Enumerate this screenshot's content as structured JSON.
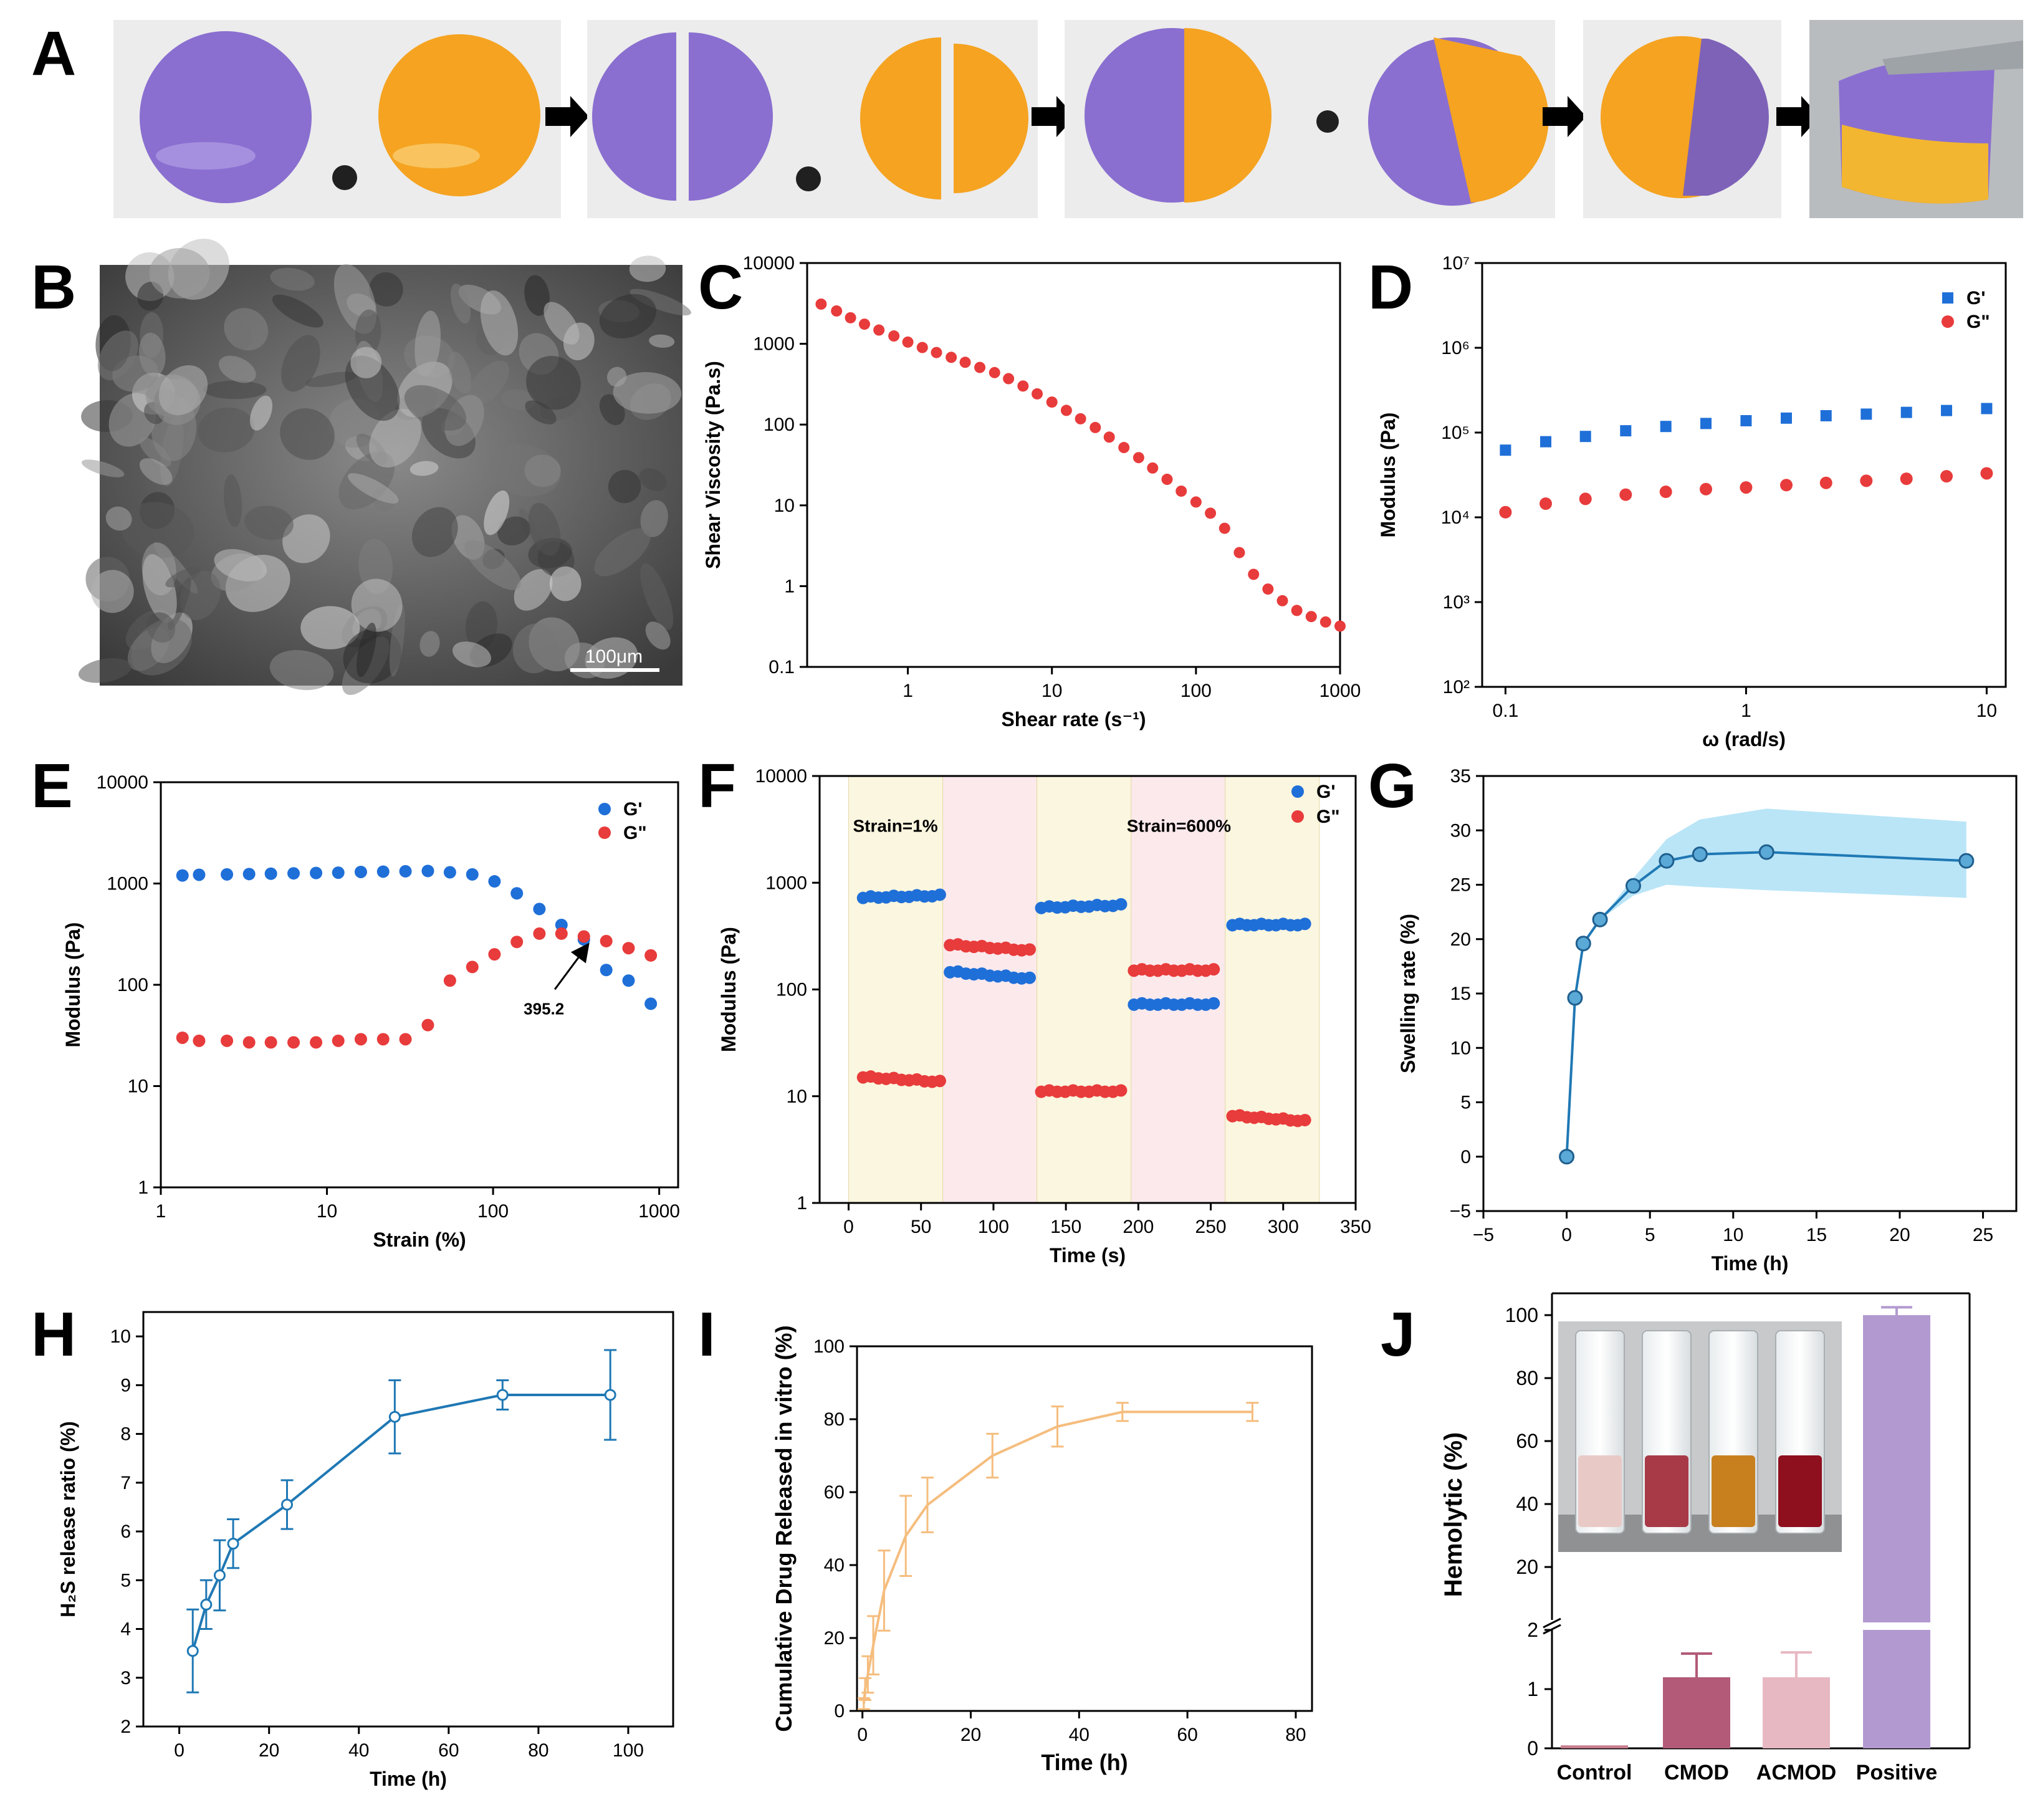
{
  "figure": {
    "panel_letters": [
      "A",
      "B",
      "C",
      "D",
      "E",
      "F",
      "G",
      "H",
      "I",
      "J"
    ],
    "sem_scale_label": "100μm"
  },
  "colors": {
    "blue": "#1f6fd8",
    "red": "#e83b3b",
    "steel": "#1f78b4",
    "band": "#7fd0f0",
    "tan": "#f5bd7e",
    "purple": "#8a6fc6",
    "gel_orange": "#f39c12",
    "bar_control": "#c97c8e",
    "bar_cmod": "#b25a78",
    "bar_acmod": "#e7b8c2",
    "bar_positive": "#b29ad0"
  },
  "chart_data": [
    {
      "panel": "C",
      "type": "scatter",
      "xlabel": "Shear rate (s⁻¹)",
      "ylabel": "Shear Viscosity (Pa.s)",
      "xscale": "log",
      "yscale": "log",
      "xlim": [
        0.2,
        1000
      ],
      "ylim": [
        0.1,
        10000
      ],
      "xticks": [
        1,
        10,
        100,
        1000
      ],
      "xtick_labels": [
        "1",
        "10",
        "100",
        "1000"
      ],
      "yticks": [
        0.1,
        1,
        10,
        100,
        1000,
        10000
      ],
      "ytick_labels": [
        "0.1",
        "1",
        "10",
        "100",
        "1000",
        "10000"
      ],
      "series": [
        {
          "name": "viscosity",
          "color": "#e83b3b",
          "x": [
            0.25,
            0.32,
            0.4,
            0.5,
            0.63,
            0.8,
            1.0,
            1.26,
            1.58,
            2.0,
            2.5,
            3.16,
            4.0,
            5.0,
            6.3,
            7.9,
            10,
            12.6,
            15.8,
            20,
            25,
            31.6,
            40,
            50,
            63,
            79,
            100,
            126,
            158,
            200,
            251,
            316,
            398,
            501,
            631,
            794,
            1000
          ],
          "y": [
            3100,
            2550,
            2100,
            1750,
            1480,
            1250,
            1050,
            900,
            780,
            680,
            590,
            510,
            440,
            370,
            300,
            240,
            190,
            150,
            118,
            92,
            70,
            52,
            39,
            29,
            21,
            15,
            11,
            8,
            5.2,
            2.6,
            1.4,
            0.92,
            0.66,
            0.5,
            0.42,
            0.36,
            0.32
          ]
        }
      ]
    },
    {
      "panel": "D",
      "type": "scatter",
      "xlabel": "ω (rad/s)",
      "ylabel": "Modulus (Pa)",
      "xscale": "log",
      "yscale": "log",
      "xlim": [
        0.08,
        12
      ],
      "ylim": [
        100,
        10000000
      ],
      "xticks": [
        0.1,
        1,
        10
      ],
      "xtick_labels": [
        "0.1",
        "1",
        "10"
      ],
      "yticks": [
        100,
        1000,
        10000,
        100000,
        1000000,
        10000000
      ],
      "ytick_labels": [
        "10²",
        "10³",
        "10⁴",
        "10⁵",
        "10⁶",
        "10⁷"
      ],
      "legend": "top-right",
      "series": [
        {
          "name": "G'",
          "marker": "square",
          "color": "#1f6fd8",
          "x": [
            0.1,
            0.147,
            0.215,
            0.316,
            0.464,
            0.681,
            1,
            1.47,
            2.15,
            3.16,
            4.64,
            6.81,
            10
          ],
          "y": [
            62000,
            78000,
            90000,
            105000,
            118000,
            128000,
            138000,
            148000,
            158000,
            165000,
            173000,
            182000,
            192000
          ]
        },
        {
          "name": "G\"",
          "marker": "circle",
          "color": "#e83b3b",
          "x": [
            0.1,
            0.147,
            0.215,
            0.316,
            0.464,
            0.681,
            1,
            1.47,
            2.15,
            3.16,
            4.64,
            6.81,
            10
          ],
          "y": [
            11500,
            14500,
            16500,
            18500,
            20000,
            21500,
            22500,
            24000,
            25500,
            27000,
            28500,
            30500,
            33000
          ]
        }
      ]
    },
    {
      "panel": "E",
      "type": "scatter",
      "xlabel": "Strain (%)",
      "ylabel": "Modulus (Pa)",
      "xscale": "log",
      "yscale": "log",
      "xlim": [
        1,
        1300
      ],
      "ylim": [
        1,
        10000
      ],
      "xticks": [
        1,
        10,
        100,
        1000
      ],
      "xtick_labels": [
        "1",
        "10",
        "100",
        "1000"
      ],
      "yticks": [
        1,
        10,
        100,
        1000,
        10000
      ],
      "ytick_labels": [
        "1",
        "10",
        "100",
        "1000",
        "10000"
      ],
      "legend": "top-right",
      "annotation": {
        "text": "395.2",
        "x": 395.2,
        "y": 280
      },
      "series": [
        {
          "name": "G'",
          "color": "#1f6fd8",
          "x": [
            1.35,
            1.7,
            2.5,
            3.4,
            4.6,
            6.3,
            8.6,
            11.7,
            16,
            21.8,
            29.7,
            40.5,
            55,
            75,
            102,
            139,
            190,
            258,
            352,
            480,
            654,
            890
          ],
          "y": [
            1200,
            1220,
            1230,
            1240,
            1250,
            1260,
            1270,
            1280,
            1300,
            1310,
            1320,
            1330,
            1290,
            1230,
            1050,
            800,
            560,
            390,
            280,
            140,
            110,
            65
          ]
        },
        {
          "name": "G\"",
          "color": "#e83b3b",
          "x": [
            1.35,
            1.7,
            2.5,
            3.4,
            4.6,
            6.3,
            8.6,
            11.7,
            16,
            21.8,
            29.7,
            40.5,
            55,
            75,
            102,
            139,
            190,
            258,
            352,
            480,
            654,
            890
          ],
          "y": [
            30,
            28,
            28,
            27,
            27,
            27,
            27,
            28,
            29,
            29,
            29,
            40,
            110,
            150,
            200,
            265,
            320,
            320,
            300,
            270,
            230,
            195
          ]
        }
      ]
    },
    {
      "panel": "F",
      "type": "scatter",
      "xlabel": "Time (s)",
      "ylabel": "Modulus (Pa)",
      "xscale": "linear",
      "yscale": "log",
      "xlim": [
        -20,
        350
      ],
      "ylim": [
        1,
        10000
      ],
      "xticks": [
        0,
        50,
        100,
        150,
        200,
        250,
        300,
        350
      ],
      "xtick_labels": [
        "0",
        "50",
        "100",
        "150",
        "200",
        "250",
        "300",
        "350"
      ],
      "yticks": [
        1,
        10,
        100,
        1000,
        10000
      ],
      "ytick_labels": [
        "1",
        "10",
        "100",
        "1000",
        "10000"
      ],
      "legend": "top-right",
      "regions": [
        {
          "x0": 0,
          "x1": 65,
          "fill": "#fbf6df"
        },
        {
          "x0": 65,
          "x1": 130,
          "fill": "#fbe9ec"
        },
        {
          "x0": 130,
          "x1": 195,
          "fill": "#fbf6df"
        },
        {
          "x0": 195,
          "x1": 260,
          "fill": "#fbe9ec"
        },
        {
          "x0": 260,
          "x1": 325,
          "fill": "#fbf6df"
        }
      ],
      "annotations": [
        {
          "text": "Strain=1%",
          "x": 3,
          "y": 3000
        },
        {
          "text": "Strain=600%",
          "x": 192,
          "y": 3000
        }
      ],
      "segments": [
        {
          "series": "G'",
          "x0": 10,
          "x1": 63,
          "y0": 720,
          "y1": 750
        },
        {
          "series": "G'",
          "x0": 70,
          "x1": 125,
          "y0": 145,
          "y1": 125
        },
        {
          "series": "G'",
          "x0": 133,
          "x1": 188,
          "y0": 580,
          "y1": 610
        },
        {
          "series": "G'",
          "x0": 197,
          "x1": 252,
          "y0": 72,
          "y1": 72
        },
        {
          "series": "G'",
          "x0": 265,
          "x1": 315,
          "y0": 400,
          "y1": 400
        },
        {
          "series": "G\"",
          "x0": 10,
          "x1": 63,
          "y0": 15,
          "y1": 13.5
        },
        {
          "series": "G\"",
          "x0": 70,
          "x1": 125,
          "y0": 260,
          "y1": 230
        },
        {
          "series": "G\"",
          "x0": 133,
          "x1": 188,
          "y0": 11,
          "y1": 11
        },
        {
          "series": "G\"",
          "x0": 197,
          "x1": 252,
          "y0": 150,
          "y1": 150
        },
        {
          "series": "G\"",
          "x0": 265,
          "x1": 315,
          "y0": 6.5,
          "y1": 5.8
        }
      ],
      "series": [
        {
          "name": "G'",
          "color": "#1f6fd8"
        },
        {
          "name": "G\"",
          "color": "#e83b3b"
        }
      ]
    },
    {
      "panel": "G",
      "type": "line",
      "xlabel": "Time (h)",
      "ylabel": "Swelling rate (%)",
      "xlim": [
        -5,
        27
      ],
      "ylim": [
        -5,
        35
      ],
      "xticks": [
        -5,
        0,
        5,
        10,
        15,
        20,
        25
      ],
      "xtick_labels": [
        "−5",
        "0",
        "5",
        "10",
        "15",
        "20",
        "25"
      ],
      "yticks": [
        -5,
        0,
        5,
        10,
        15,
        20,
        25,
        30,
        35
      ],
      "ytick_labels": [
        "−5",
        "0",
        "5",
        "10",
        "15",
        "20",
        "25",
        "30",
        "35"
      ],
      "series": [
        {
          "name": "swelling",
          "color": "#1f78b4",
          "x": [
            0,
            0.5,
            1,
            2,
            4,
            6,
            8,
            12,
            24
          ],
          "y": [
            0,
            14.6,
            19.6,
            21.8,
            24.9,
            27.2,
            27.8,
            28.0,
            27.2
          ],
          "band_low": [
            0,
            14.6,
            19.6,
            21.8,
            24.0,
            25.0,
            24.8,
            24.5,
            23.8
          ],
          "band_high": [
            0,
            14.6,
            19.6,
            21.8,
            25.6,
            29.2,
            31.0,
            32.0,
            30.8
          ]
        }
      ]
    },
    {
      "panel": "H",
      "type": "line",
      "xlabel": "Time (h)",
      "ylabel": "H₂S release ratio (%)",
      "xlim": [
        -8,
        110
      ],
      "ylim": [
        2,
        10.5
      ],
      "xticks": [
        0,
        20,
        40,
        60,
        80,
        100
      ],
      "xtick_labels": [
        "0",
        "20",
        "40",
        "60",
        "80",
        "100"
      ],
      "yticks": [
        2,
        3,
        4,
        5,
        6,
        7,
        8,
        9,
        10
      ],
      "ytick_labels": [
        "2",
        "3",
        "4",
        "5",
        "6",
        "7",
        "8",
        "9",
        "10"
      ],
      "series": [
        {
          "name": "H2S",
          "color": "#1f78b4",
          "x": [
            3,
            6,
            9,
            12,
            24,
            48,
            72,
            96
          ],
          "y": [
            3.55,
            4.5,
            5.1,
            5.75,
            6.55,
            8.35,
            8.8,
            8.8
          ],
          "err": [
            0.85,
            0.5,
            0.72,
            0.5,
            0.5,
            0.75,
            0.3,
            0.92
          ]
        }
      ]
    },
    {
      "panel": "I",
      "type": "line",
      "xlabel": "Time (h)",
      "ylabel": "Cumulative Drug Released in vitro (%)",
      "xlim": [
        -1,
        83
      ],
      "ylim": [
        0,
        100
      ],
      "xticks": [
        0,
        20,
        40,
        60,
        80
      ],
      "xtick_labels": [
        "0",
        "20",
        "40",
        "60",
        "80"
      ],
      "yticks": [
        0,
        20,
        40,
        60,
        80,
        100
      ],
      "ytick_labels": [
        "0",
        "20",
        "40",
        "60",
        "80",
        "100"
      ],
      "series": [
        {
          "name": "release",
          "color": "#f5bd7e",
          "x": [
            0.25,
            0.5,
            1,
            2,
            4,
            8,
            12,
            24,
            36,
            48,
            72
          ],
          "y": [
            2,
            6,
            10,
            18,
            33,
            48,
            56.5,
            70,
            78,
            82,
            82
          ],
          "err": [
            1.5,
            3,
            5,
            8,
            11,
            11,
            7.5,
            6,
            5.5,
            2.5,
            2.5
          ]
        }
      ]
    },
    {
      "panel": "J",
      "type": "bar",
      "xlabel": "",
      "ylabel": "Hemolytic (%)",
      "categories": [
        "Control",
        "CMOD",
        "ACMOD",
        "Positive"
      ],
      "values": [
        0.05,
        1.2,
        1.2,
        100
      ],
      "err": [
        0.02,
        0.4,
        0.42,
        2.5
      ],
      "broken_axis": {
        "lower": [
          0,
          2
        ],
        "upper": [
          2,
          100
        ]
      },
      "yticks_lower": [
        0,
        1,
        2
      ],
      "ytick_labels_lower": [
        "0",
        "1",
        "2"
      ],
      "yticks_upper": [
        20,
        40,
        60,
        80,
        100
      ],
      "ytick_labels_upper": [
        "20",
        "40",
        "60",
        "80",
        "100"
      ],
      "inset": "photo of four tubes"
    }
  ]
}
